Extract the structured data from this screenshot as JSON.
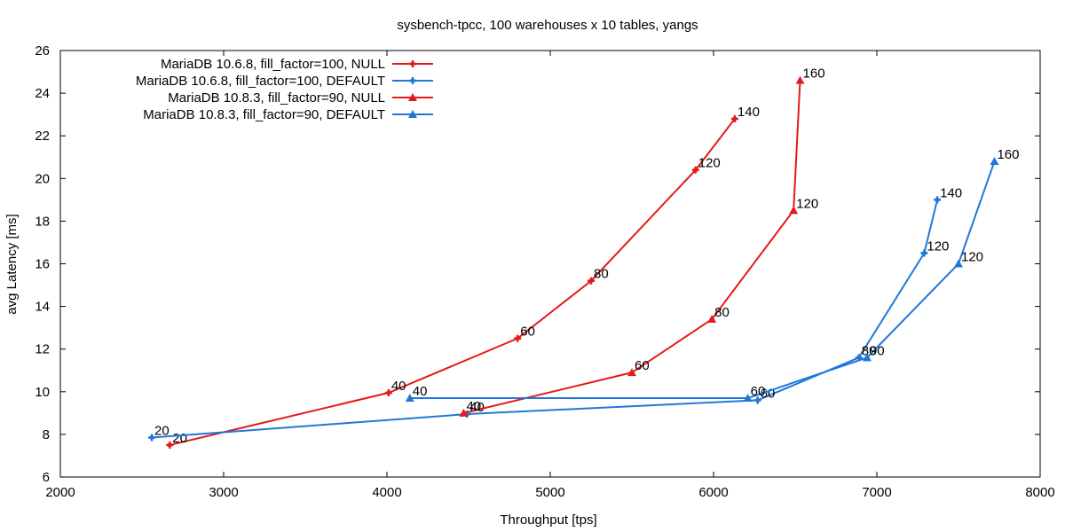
{
  "chart_data": {
    "type": "line",
    "title": "sysbench-tpcc, 100 warehouses x 10 tables, yangs",
    "xlabel": "Throughput [tps]",
    "ylabel": "avg Latency [ms]",
    "xlim": [
      2000,
      8000
    ],
    "ylim": [
      6,
      26
    ],
    "x_ticks": [
      2000,
      3000,
      4000,
      5000,
      6000,
      7000,
      8000
    ],
    "y_ticks": [
      6,
      8,
      10,
      12,
      14,
      16,
      18,
      20,
      22,
      24,
      26
    ],
    "grid": false,
    "legend_position": "top-left",
    "series": [
      {
        "name": "MariaDB 10.6.8, fill_factor=100, NULL",
        "color": "#e41a1c",
        "marker": "cross",
        "points": [
          {
            "x": 2670,
            "y": 7.5,
            "label": "20"
          },
          {
            "x": 4010,
            "y": 9.95,
            "label": "40"
          },
          {
            "x": 4800,
            "y": 12.5,
            "label": "60"
          },
          {
            "x": 5250,
            "y": 15.2,
            "label": "80"
          },
          {
            "x": 5890,
            "y": 20.4,
            "label": "120"
          },
          {
            "x": 6130,
            "y": 22.8,
            "label": "140"
          }
        ]
      },
      {
        "name": "MariaDB 10.6.8, fill_factor=100, DEFAULT",
        "color": "#1f78d8",
        "marker": "cross",
        "points": [
          {
            "x": 2560,
            "y": 7.85,
            "label": "20"
          },
          {
            "x": 4490,
            "y": 8.95,
            "label": "40"
          },
          {
            "x": 6270,
            "y": 9.6,
            "label": "60"
          },
          {
            "x": 6890,
            "y": 11.6,
            "label": "80"
          },
          {
            "x": 7290,
            "y": 16.5,
            "label": "120"
          },
          {
            "x": 7370,
            "y": 19.0,
            "label": "140"
          }
        ]
      },
      {
        "name": "MariaDB 10.8.3, fill_factor=90, NULL",
        "color": "#e41a1c",
        "marker": "triangle",
        "points": [
          {
            "x": 4470,
            "y": 9.0,
            "label": "40"
          },
          {
            "x": 5500,
            "y": 10.9,
            "label": "60"
          },
          {
            "x": 5990,
            "y": 13.4,
            "label": "80"
          },
          {
            "x": 6490,
            "y": 18.5,
            "label": "120"
          },
          {
            "x": 6530,
            "y": 24.6,
            "label": "160"
          }
        ]
      },
      {
        "name": "MariaDB 10.8.3, fill_factor=90, DEFAULT",
        "color": "#1f78d8",
        "marker": "triangle",
        "points": [
          {
            "x": 4140,
            "y": 9.7,
            "label": "40"
          },
          {
            "x": 6210,
            "y": 9.7,
            "label": "60"
          },
          {
            "x": 6940,
            "y": 11.6,
            "label": "90"
          },
          {
            "x": 7500,
            "y": 16.0,
            "label": "120"
          },
          {
            "x": 7720,
            "y": 20.8,
            "label": "160"
          }
        ]
      }
    ]
  }
}
